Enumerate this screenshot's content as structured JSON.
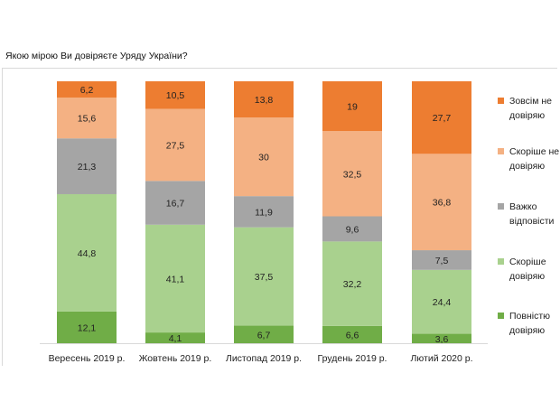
{
  "chart_data": {
    "type": "bar",
    "stacked": true,
    "normalized_to": 100,
    "title": "Якою мірою Ви довіряєте Уряду України?",
    "categories": [
      "Вересень 2019 р.",
      "Жовтень 2019 р.",
      "Листопад 2019 р.",
      "Грудень 2019 р.",
      "Лютий 2020 р."
    ],
    "series": [
      {
        "name": "Повністю довіряю",
        "legend_lines": [
          "Повністю",
          "довіряю"
        ],
        "color": "#70ad47",
        "labels": [
          "12,1",
          "4,1",
          "6,7",
          "6,6",
          "3,6"
        ],
        "values": [
          12.1,
          4.1,
          6.7,
          6.6,
          3.6
        ]
      },
      {
        "name": "Скоріше довіряю",
        "legend_lines": [
          "Скоріше",
          "довіряю"
        ],
        "color": "#a9d18e",
        "labels": [
          "44,8",
          "41,1",
          "37,5",
          "32,2",
          "24,4"
        ],
        "values": [
          44.8,
          41.1,
          37.5,
          32.2,
          24.4
        ]
      },
      {
        "name": "Важко відповісти",
        "legend_lines": [
          "Важко",
          "відповісти"
        ],
        "color": "#a5a5a5",
        "labels": [
          "21,3",
          "16,7",
          "11,9",
          "9,6",
          "7,5"
        ],
        "values": [
          21.3,
          16.7,
          11.9,
          9.6,
          7.5
        ]
      },
      {
        "name": "Скоріше не довіряю",
        "legend_lines": [
          "Скоріше не",
          "довіряю"
        ],
        "color": "#f4b183",
        "labels": [
          "15,6",
          "27,5",
          "30",
          "32,5",
          "36,8"
        ],
        "values": [
          15.6,
          27.5,
          30,
          32.5,
          36.8
        ]
      },
      {
        "name": "Зовсім не довіряю",
        "legend_lines": [
          "Зовсім не",
          "довіряю"
        ],
        "color": "#ed7d31",
        "labels": [
          "6,2",
          "10,5",
          "13,8",
          "19",
          "27,7"
        ],
        "values": [
          6.2,
          10.5,
          13.8,
          19,
          27.7
        ]
      }
    ],
    "legend_position": "right",
    "grid": false
  }
}
